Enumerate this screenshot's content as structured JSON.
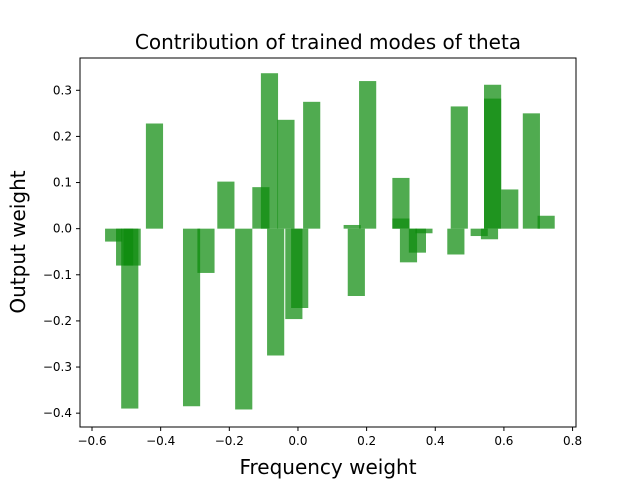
{
  "chart_data": {
    "type": "bar",
    "title": "Contribution of trained modes of theta",
    "xlabel": "Frequency weight",
    "ylabel": "Output weight",
    "xlim": [
      -0.635,
      0.81
    ],
    "ylim": [
      -0.43,
      0.37
    ],
    "xticks": [
      -0.6,
      -0.4,
      -0.2,
      0.0,
      0.2,
      0.4,
      0.6,
      0.8
    ],
    "xtick_labels": [
      "−0.6",
      "−0.4",
      "−0.2",
      "0.0",
      "0.2",
      "0.4",
      "0.6",
      "0.8"
    ],
    "yticks": [
      -0.4,
      -0.3,
      -0.2,
      -0.1,
      0.0,
      0.1,
      0.2,
      0.3
    ],
    "ytick_labels": [
      "−0.4",
      "−0.3",
      "−0.2",
      "−0.1",
      "0.0",
      "0.1",
      "0.2",
      "0.3"
    ],
    "grid": false,
    "bar_color": "#0d8a0d",
    "bar_opacity": 0.72,
    "bar_width": 0.05,
    "bars": [
      {
        "x": -0.537,
        "y": -0.028
      },
      {
        "x": -0.505,
        "y": -0.08
      },
      {
        "x": -0.483,
        "y": -0.08
      },
      {
        "x": -0.49,
        "y": -0.39
      },
      {
        "x": -0.418,
        "y": 0.228
      },
      {
        "x": -0.31,
        "y": -0.385
      },
      {
        "x": -0.268,
        "y": -0.096
      },
      {
        "x": -0.21,
        "y": 0.102
      },
      {
        "x": -0.158,
        "y": -0.392
      },
      {
        "x": -0.108,
        "y": 0.09
      },
      {
        "x": -0.083,
        "y": 0.337
      },
      {
        "x": -0.065,
        "y": -0.275
      },
      {
        "x": -0.035,
        "y": 0.236
      },
      {
        "x": -0.012,
        "y": -0.196
      },
      {
        "x": 0.005,
        "y": -0.172
      },
      {
        "x": 0.04,
        "y": 0.275
      },
      {
        "x": 0.158,
        "y": 0.008
      },
      {
        "x": 0.17,
        "y": -0.146
      },
      {
        "x": 0.203,
        "y": 0.32
      },
      {
        "x": 0.3,
        "y": 0.11
      },
      {
        "x": 0.3,
        "y": 0.022
      },
      {
        "x": 0.322,
        "y": -0.073
      },
      {
        "x": 0.348,
        "y": -0.052
      },
      {
        "x": 0.367,
        "y": -0.01
      },
      {
        "x": 0.46,
        "y": -0.056
      },
      {
        "x": 0.47,
        "y": 0.265
      },
      {
        "x": 0.528,
        "y": -0.016
      },
      {
        "x": 0.558,
        "y": -0.023
      },
      {
        "x": 0.567,
        "y": 0.312
      },
      {
        "x": 0.567,
        "y": 0.282
      },
      {
        "x": 0.617,
        "y": 0.085
      },
      {
        "x": 0.68,
        "y": 0.25
      },
      {
        "x": 0.723,
        "y": 0.028
      }
    ]
  }
}
